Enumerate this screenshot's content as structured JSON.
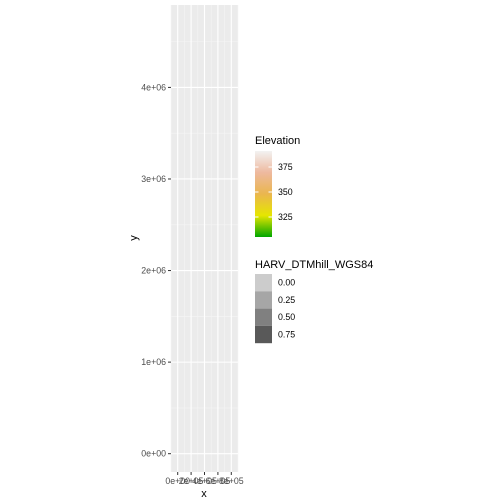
{
  "chart_data": {
    "type": "heatmap",
    "xlabel": "x",
    "ylabel": "y",
    "x_tick_labels": [
      "0e+00",
      "2e+05",
      "4e+05",
      "6e+05",
      "8e+05"
    ],
    "x_ticks": [
      0,
      200000,
      400000,
      600000,
      800000
    ],
    "xlim": [
      -100000,
      900000
    ],
    "y_tick_labels": [
      "0e+00",
      "1e+06",
      "2e+06",
      "3e+06",
      "4e+06"
    ],
    "y_ticks": [
      0,
      1000000,
      2000000,
      3000000,
      4000000
    ],
    "ylim": [
      -200000,
      4900000
    ],
    "grid": true,
    "legend_position": "right",
    "legends": [
      {
        "title": "Elevation",
        "type": "colorbar",
        "breaks": [
          "325",
          "350",
          "375"
        ],
        "break_values": [
          325,
          350,
          375
        ],
        "range": [
          305,
          391
        ],
        "colors": [
          "#00A600",
          "#E6E600",
          "#EAB64E",
          "#EEB99F",
          "#F2F2F2"
        ]
      },
      {
        "title": "HARV_DTMhill_WGS84",
        "type": "alpha",
        "labels": [
          "0.00",
          "0.25",
          "0.50",
          "0.75"
        ],
        "colors": [
          "#cccccc",
          "#a6a6a6",
          "#808080",
          "#595959"
        ]
      }
    ]
  }
}
